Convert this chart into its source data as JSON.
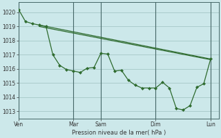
{
  "bg_color": "#cce8ea",
  "grid_color": "#aacccc",
  "line_color": "#2d6a2d",
  "marker_color": "#2d6a2d",
  "xlabel": "Pression niveau de la mer( hPa )",
  "ylim": [
    1012.5,
    1020.7
  ],
  "yticks": [
    1013,
    1014,
    1015,
    1016,
    1017,
    1018,
    1019,
    1020
  ],
  "xtick_labels": [
    "Ven",
    "Mar",
    "Sam",
    "Dim",
    "Lun"
  ],
  "xtick_positions": [
    0,
    48,
    72,
    120,
    168
  ],
  "vlines": [
    0,
    48,
    72,
    120,
    168
  ],
  "xlim": [
    0,
    175
  ],
  "series1": {
    "x": [
      0,
      6,
      12,
      18,
      24,
      30,
      36,
      42,
      48,
      54,
      60,
      66,
      72,
      78,
      84,
      90,
      96,
      102,
      108,
      114,
      120,
      126,
      132,
      138,
      144,
      150,
      156,
      162,
      168
    ],
    "y": [
      1020.2,
      1019.35,
      1019.2,
      1019.1,
      1019.0,
      1017.0,
      1016.25,
      1015.95,
      1015.85,
      1015.75,
      1016.05,
      1016.1,
      1017.1,
      1017.05,
      1015.85,
      1015.9,
      1015.2,
      1014.85,
      1014.65,
      1014.65,
      1014.65,
      1015.05,
      1014.65,
      1013.2,
      1013.1,
      1013.4,
      1014.7,
      1014.95,
      1016.7
    ]
  },
  "series2": {
    "x": [
      18,
      168
    ],
    "y": [
      1019.1,
      1016.7
    ]
  },
  "series3": {
    "x": [
      18,
      168
    ],
    "y": [
      1019.0,
      1016.65
    ]
  }
}
